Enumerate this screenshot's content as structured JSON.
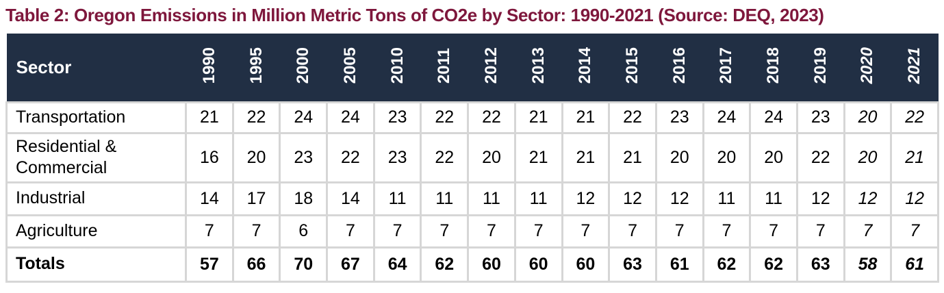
{
  "title": "Table 2: Oregon Emissions in Million Metric Tons of CO2e by Sector: 1990-2021 (Source: DEQ, 2023)",
  "colors": {
    "title_text": "#7E173C",
    "header_background": "#212F44",
    "header_text": "#FFFFFF",
    "grid_lines": "#D6D6D6",
    "cell_background": "#FFFFFF",
    "body_text": "#000000"
  },
  "table": {
    "sector_header": "Sector",
    "years": [
      "1990",
      "1995",
      "2000",
      "2005",
      "2010",
      "2011",
      "2012",
      "2013",
      "2014",
      "2015",
      "2016",
      "2017",
      "2018",
      "2019",
      "2020",
      "2021"
    ],
    "italic_years": [
      "2020",
      "2021"
    ],
    "rows": [
      {
        "sector": "Transportation",
        "bold": false,
        "values": [
          "21",
          "22",
          "24",
          "24",
          "23",
          "22",
          "22",
          "21",
          "21",
          "22",
          "23",
          "24",
          "24",
          "23",
          "20",
          "22"
        ]
      },
      {
        "sector": "Residential & Commercial",
        "bold": false,
        "values": [
          "16",
          "20",
          "23",
          "22",
          "23",
          "22",
          "20",
          "21",
          "21",
          "21",
          "20",
          "20",
          "20",
          "22",
          "20",
          "21"
        ]
      },
      {
        "sector": "Industrial",
        "bold": false,
        "values": [
          "14",
          "17",
          "18",
          "14",
          "11",
          "11",
          "11",
          "11",
          "12",
          "12",
          "12",
          "11",
          "11",
          "12",
          "12",
          "12"
        ]
      },
      {
        "sector": "Agriculture",
        "bold": false,
        "values": [
          "7",
          "7",
          "6",
          "7",
          "7",
          "7",
          "7",
          "7",
          "7",
          "7",
          "7",
          "7",
          "7",
          "7",
          "7",
          "7"
        ]
      },
      {
        "sector": "Totals",
        "bold": true,
        "values": [
          "57",
          "66",
          "70",
          "67",
          "64",
          "62",
          "60",
          "60",
          "60",
          "63",
          "61",
          "62",
          "62",
          "63",
          "58",
          "61"
        ]
      }
    ]
  }
}
